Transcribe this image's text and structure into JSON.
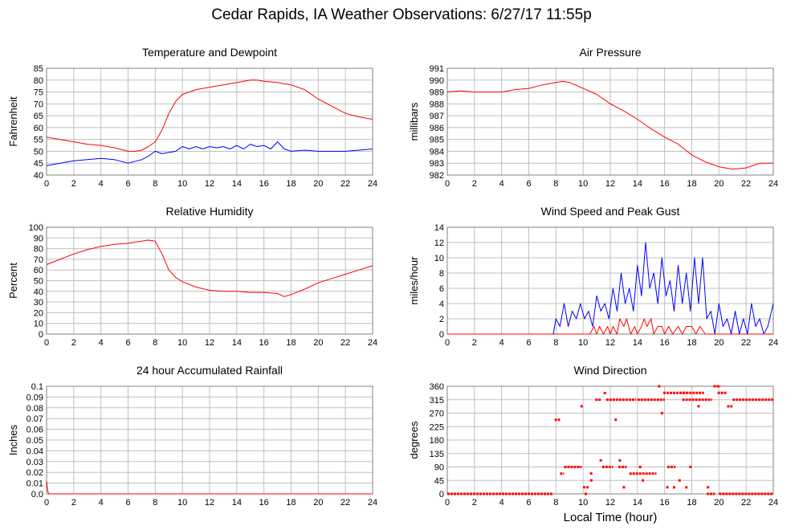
{
  "title": "Cedar Rapids, IA Weather Observations: 6/27/17 11:55p",
  "xlabel": "Local Time (hour)",
  "colors": {
    "primary": "#ff0000",
    "secondary": "#0000ff",
    "grid": "#c0c0c0"
  },
  "chart_data": [
    {
      "type": "line",
      "title": "Temperature and Dewpoint",
      "ylabel": "Fahrenheit",
      "xlim": [
        0,
        24
      ],
      "ylim": [
        40,
        85
      ],
      "xticks": [
        "0",
        "2",
        "4",
        "6",
        "8",
        "10",
        "12",
        "14",
        "16",
        "18",
        "20",
        "22",
        "24"
      ],
      "yticks": [
        "40",
        "45",
        "50",
        "55",
        "60",
        "65",
        "70",
        "75",
        "80",
        "85"
      ],
      "grid": true,
      "series": [
        {
          "color": "#ff0000",
          "x": [
            0,
            1,
            2,
            3,
            4,
            5,
            6,
            6.5,
            7,
            7.5,
            8,
            8.5,
            9,
            9.5,
            10,
            10.5,
            11,
            12,
            13,
            14,
            15,
            15.5,
            16,
            17,
            18,
            19,
            20,
            21,
            22,
            23,
            24
          ],
          "values": [
            56,
            55,
            54,
            53,
            52.5,
            51.5,
            50,
            50,
            50.5,
            52,
            54,
            59,
            66,
            71,
            74,
            75,
            76,
            77,
            78,
            79,
            80,
            80,
            79.5,
            79,
            78,
            76,
            72,
            69,
            66,
            64.5,
            63.5
          ]
        },
        {
          "color": "#0000ff",
          "x": [
            0,
            1,
            2,
            3,
            4,
            5,
            6,
            7,
            7.5,
            8,
            8.5,
            9,
            9.5,
            10,
            10.5,
            11,
            11.5,
            12,
            12.5,
            13,
            13.5,
            14,
            14.5,
            15,
            15.5,
            16,
            16.5,
            17,
            17.5,
            18,
            19,
            20,
            21,
            22,
            23,
            24
          ],
          "values": [
            44,
            45,
            46,
            46.5,
            47,
            46.5,
            45,
            46.5,
            48,
            50,
            49,
            49.5,
            50,
            52,
            51,
            52,
            51,
            52,
            51.5,
            52,
            51,
            52.5,
            51,
            53,
            52,
            52.5,
            51,
            54,
            51,
            50,
            50.5,
            50,
            50,
            50,
            50.5,
            51
          ]
        }
      ]
    },
    {
      "type": "line",
      "title": "Air Pressure",
      "ylabel": "millibars",
      "xlim": [
        0,
        24
      ],
      "ylim": [
        982,
        991
      ],
      "xticks": [
        "0",
        "2",
        "4",
        "6",
        "8",
        "10",
        "12",
        "14",
        "16",
        "18",
        "20",
        "22",
        "24"
      ],
      "yticks": [
        "982",
        "983",
        "984",
        "985",
        "986",
        "987",
        "988",
        "989",
        "990",
        "991"
      ],
      "grid": true,
      "series": [
        {
          "color": "#ff0000",
          "x": [
            0,
            1,
            2,
            3,
            4,
            5,
            6,
            7,
            8,
            8.5,
            9,
            10,
            11,
            12,
            13,
            14,
            15,
            16,
            17,
            18,
            19,
            20,
            21,
            22,
            23,
            24
          ],
          "values": [
            989,
            989.1,
            989,
            989,
            989,
            989.2,
            989.3,
            989.6,
            989.8,
            989.9,
            989.8,
            989.3,
            988.8,
            988,
            987.4,
            986.7,
            985.9,
            985.2,
            984.6,
            983.7,
            983.1,
            982.7,
            982.5,
            982.6,
            983,
            983
          ]
        }
      ]
    },
    {
      "type": "line",
      "title": "Relative Humidity",
      "ylabel": "Percent",
      "xlim": [
        0,
        24
      ],
      "ylim": [
        0,
        100
      ],
      "xticks": [
        "0",
        "2",
        "4",
        "6",
        "8",
        "10",
        "12",
        "14",
        "16",
        "18",
        "20",
        "22",
        "24"
      ],
      "yticks": [
        "0",
        "10",
        "20",
        "30",
        "40",
        "50",
        "60",
        "70",
        "80",
        "90",
        "100"
      ],
      "grid": true,
      "series": [
        {
          "color": "#ff0000",
          "x": [
            0,
            1,
            2,
            3,
            4,
            5,
            6,
            7,
            7.5,
            8,
            8.5,
            9,
            9.5,
            10,
            11,
            12,
            13,
            14,
            15,
            16,
            17,
            17.5,
            18,
            19,
            20,
            21,
            22,
            23,
            24
          ],
          "values": [
            65,
            70,
            75,
            79,
            82,
            84,
            85,
            87,
            88,
            87,
            75,
            60,
            53,
            49,
            44,
            41,
            40,
            40,
            39,
            39,
            38,
            35,
            37,
            42,
            48,
            52,
            56,
            60,
            64
          ]
        }
      ]
    },
    {
      "type": "line",
      "title": "Wind Speed and Peak Gust",
      "ylabel": "miles/hour",
      "xlim": [
        0,
        24
      ],
      "ylim": [
        0,
        14
      ],
      "xticks": [
        "0",
        "2",
        "4",
        "6",
        "8",
        "10",
        "12",
        "14",
        "16",
        "18",
        "20",
        "22",
        "24"
      ],
      "yticks": [
        "0",
        "2",
        "4",
        "6",
        "8",
        "10",
        "12",
        "14"
      ],
      "grid": true,
      "series": [
        {
          "color": "#0000ff",
          "x": [
            0,
            7.8,
            8.0,
            8.3,
            8.6,
            8.9,
            9.2,
            9.5,
            9.8,
            10.1,
            10.4,
            10.7,
            11.0,
            11.3,
            11.6,
            11.9,
            12.2,
            12.5,
            12.8,
            13.1,
            13.4,
            13.7,
            14.0,
            14.3,
            14.6,
            14.9,
            15.2,
            15.5,
            15.8,
            16.1,
            16.4,
            16.7,
            17.0,
            17.3,
            17.6,
            17.9,
            18.2,
            18.5,
            18.8,
            19.1,
            19.4,
            19.7,
            20.0,
            20.3,
            20.6,
            20.9,
            21.2,
            21.5,
            21.8,
            22.1,
            22.4,
            22.7,
            23.0,
            23.3,
            23.6,
            24.0
          ],
          "values": [
            0,
            0,
            2,
            1,
            4,
            1,
            3,
            2,
            4,
            2,
            3,
            1,
            5,
            3,
            4,
            2,
            6,
            3,
            8,
            4,
            6,
            3,
            9,
            5,
            12,
            6,
            8,
            4,
            10,
            5,
            7,
            3,
            9,
            4,
            8,
            3,
            10,
            4,
            10,
            2,
            3,
            0,
            4,
            1,
            2,
            0,
            3,
            0,
            2,
            0,
            4,
            1,
            2,
            0,
            1,
            4
          ]
        },
        {
          "color": "#ff0000",
          "x": [
            0,
            10.5,
            10.8,
            11.0,
            11.2,
            11.5,
            11.8,
            12.0,
            12.2,
            12.5,
            12.7,
            13.0,
            13.2,
            13.5,
            13.8,
            14.0,
            14.3,
            14.5,
            14.7,
            15.0,
            15.2,
            15.5,
            15.8,
            16.0,
            16.3,
            16.6,
            17.0,
            17.3,
            17.6,
            18.0,
            18.3,
            18.6,
            19.0,
            19.3,
            24.0
          ],
          "values": [
            0,
            0,
            1,
            0,
            1,
            0,
            1,
            0,
            1,
            0,
            2,
            1,
            2,
            0,
            1,
            0,
            1,
            2,
            1,
            2,
            0,
            1,
            1,
            0,
            1,
            0,
            1,
            0,
            1,
            1,
            0,
            1,
            0,
            0,
            0
          ]
        }
      ]
    },
    {
      "type": "line",
      "title": "24 hour Accumulated Rainfall",
      "ylabel": "Inches",
      "xlim": [
        0,
        24
      ],
      "ylim": [
        0,
        0.1
      ],
      "xticks": [
        "0",
        "2",
        "4",
        "6",
        "8",
        "10",
        "12",
        "14",
        "16",
        "18",
        "20",
        "22",
        "24"
      ],
      "yticks": [
        "0.0",
        "0.01",
        "0.02",
        "0.03",
        "0.04",
        "0.05",
        "0.06",
        "0.07",
        "0.08",
        "0.09",
        "0.1"
      ],
      "grid": true,
      "series": [
        {
          "color": "#ff0000",
          "x": [
            0,
            0.08,
            0.16,
            24
          ],
          "values": [
            0.012,
            0.003,
            0,
            0
          ]
        }
      ]
    },
    {
      "type": "scatter",
      "title": "Wind Direction",
      "ylabel": "degrees",
      "xlim": [
        0,
        24
      ],
      "ylim": [
        0,
        360
      ],
      "xticks": [
        "0",
        "2",
        "4",
        "6",
        "8",
        "10",
        "12",
        "14",
        "16",
        "18",
        "20",
        "22",
        "24"
      ],
      "yticks": [
        "0",
        "45",
        "90",
        "135",
        "180",
        "225",
        "270",
        "315",
        "360"
      ],
      "grid": true,
      "series": [
        {
          "color": "#ff0000",
          "segments": [
            [
              0,
              7.8,
              0
            ],
            [
              7.9,
              8.3,
              248
            ],
            [
              8.3,
              8.6,
              68
            ],
            [
              8.6,
              9.9,
              90
            ],
            [
              9.8,
              10.0,
              293
            ],
            [
              10.0,
              10.4,
              22
            ],
            [
              10.5,
              10.7,
              68
            ],
            [
              10.9,
              11.3,
              315
            ],
            [
              11.4,
              12.2,
              90
            ],
            [
              11.7,
              13.9,
              315
            ],
            [
              12.6,
              13.2,
              90
            ],
            [
              13.4,
              15.4,
              68
            ],
            [
              14.0,
              16.0,
              315
            ],
            [
              15.9,
              17.6,
              338
            ],
            [
              16.2,
              16.8,
              90
            ],
            [
              17.1,
              18.9,
              338
            ],
            [
              17.3,
              19.5,
              315
            ],
            [
              19.1,
              19.7,
              0
            ],
            [
              19.6,
              20.1,
              360
            ],
            [
              19.9,
              20.6,
              338
            ],
            [
              20.0,
              24.0,
              0
            ],
            [
              20.6,
              21.0,
              293
            ],
            [
              21.0,
              24.0,
              315
            ]
          ],
          "points": [
            [
              10.2,
              0
            ],
            [
              10.6,
              45
            ],
            [
              11.3,
              112
            ],
            [
              11.6,
              337
            ],
            [
              12.4,
              248
            ],
            [
              12.7,
              112
            ],
            [
              13.0,
              22
            ],
            [
              14.2,
              90
            ],
            [
              14.4,
              45
            ],
            [
              15.6,
              360
            ],
            [
              15.8,
              270
            ],
            [
              16.2,
              22
            ],
            [
              16.7,
              22
            ],
            [
              17.1,
              45
            ],
            [
              17.6,
              22
            ],
            [
              17.9,
              90
            ],
            [
              18.5,
              293
            ],
            [
              19.2,
              22
            ]
          ]
        }
      ]
    }
  ]
}
